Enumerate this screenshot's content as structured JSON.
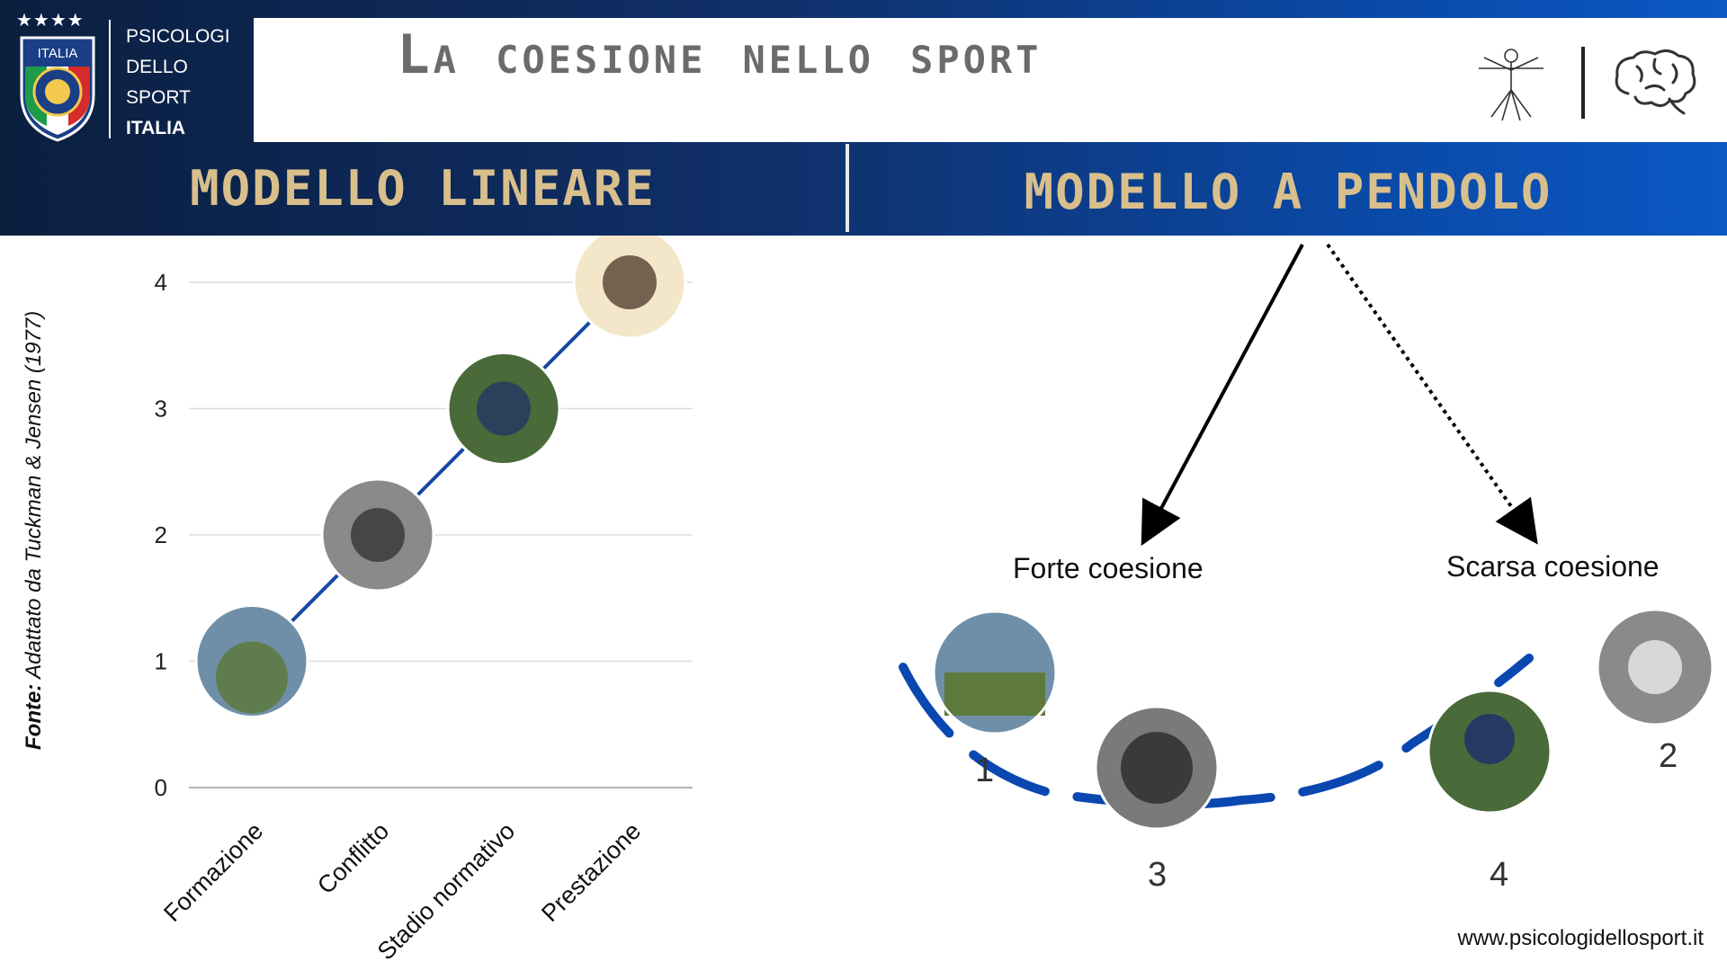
{
  "header": {
    "title": "La coesione nello sport",
    "org": {
      "line1": "PSICOLOGI",
      "line2": "DELLO",
      "line3": "SPORT",
      "line4": "ITALIA"
    },
    "shield_text": "ITALIA",
    "icons": [
      "vitruvian-man-icon",
      "brain-icon"
    ]
  },
  "sections": {
    "left": "MODELLO LINEARE",
    "right": "MODELLO A PENDOLO"
  },
  "source": {
    "label": "Fonte:",
    "text": "Adattato da Tuckman & Jensen (1977)"
  },
  "chart_data": {
    "type": "line",
    "categories": [
      "Formazione",
      "Conflitto",
      "Stadio normativo",
      "Prestazione"
    ],
    "values": [
      1,
      2,
      3,
      4
    ],
    "ylim": [
      0,
      4
    ],
    "yticks": [
      0,
      1,
      2,
      3,
      4
    ],
    "grid": true,
    "series_color": "#1747a6",
    "point_markers": "circular-photos"
  },
  "pendulum": {
    "left_label": "Forte coesione",
    "right_label": "Scarsa coesione",
    "positions": [
      "1",
      "3",
      "4",
      "2"
    ],
    "curve_color": "#0a47b0"
  },
  "footer": {
    "website": "www.psicologidellosport.it"
  },
  "colors": {
    "accent_gold": "#d9bf8c",
    "navy": "#0b1f3f",
    "blue": "#0a4aa8"
  }
}
